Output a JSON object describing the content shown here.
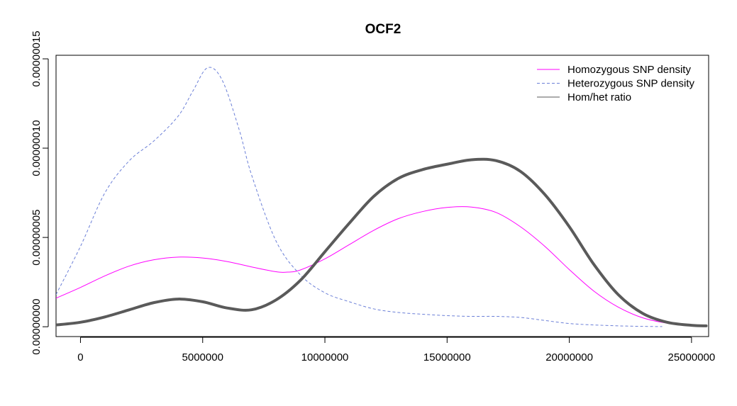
{
  "chart_data": {
    "type": "line",
    "title": "OCF2",
    "xlabel": "",
    "ylabel": "",
    "xlim": [
      -1000000,
      25700000
    ],
    "ylim": [
      -5.5e-09,
      1.52e-07
    ],
    "grid": false,
    "legend_position": "top-right",
    "x_ticks": [
      0,
      5000000,
      10000000,
      15000000,
      20000000,
      25000000
    ],
    "x_tick_labels": [
      "0",
      "5000000",
      "10000000",
      "15000000",
      "20000000",
      "25000000"
    ],
    "y_ticks": [
      0,
      5e-08,
      1e-07,
      1.5e-07
    ],
    "y_tick_labels": [
      "0.00000000",
      "0.00000005",
      "0.00000010",
      "0.00000015"
    ],
    "series": [
      {
        "name": "Homozygous SNP density",
        "color": "#ff00ff",
        "style": "solid",
        "width": 1,
        "x": [
          -1000000,
          0,
          1000000,
          2000000,
          3000000,
          4000000,
          5000000,
          6000000,
          7000000,
          8000000,
          8500000,
          9000000,
          10000000,
          11000000,
          12000000,
          13000000,
          14000000,
          15000000,
          16000000,
          17000000,
          18000000,
          19000000,
          20000000,
          21000000,
          22000000,
          23000000,
          24000000,
          25000000,
          25600000
        ],
        "y": [
          1.6e-08,
          2.2e-08,
          2.85e-08,
          3.4e-08,
          3.75e-08,
          3.9e-08,
          3.85e-08,
          3.65e-08,
          3.35e-08,
          3.08e-08,
          3.06e-08,
          3.18e-08,
          3.8e-08,
          4.6e-08,
          5.4e-08,
          6.05e-08,
          6.45e-08,
          6.68e-08,
          6.7e-08,
          6.4e-08,
          5.6e-08,
          4.5e-08,
          3.2e-08,
          2e-08,
          1.1e-08,
          5e-09,
          2e-09,
          8e-10,
          5e-10
        ]
      },
      {
        "name": "Heterozygous SNP density",
        "color": "#6b7fd7",
        "style": "dashed",
        "width": 1,
        "x": [
          -1000000,
          0,
          1000000,
          2000000,
          3000000,
          4000000,
          4600000,
          5200000,
          5800000,
          6500000,
          7000000,
          8000000,
          9000000,
          10000000,
          11000000,
          12000000,
          13000000,
          14000000,
          15000000,
          16000000,
          17000000,
          18000000,
          19000000,
          20000000,
          21000000,
          22000000,
          23000000,
          23800000
        ],
        "y": [
          1.8e-08,
          4.5e-08,
          7.5e-08,
          9.3e-08,
          1.04e-07,
          1.18e-07,
          1.32e-07,
          1.45e-07,
          1.38e-07,
          1.1e-07,
          8.5e-08,
          4.8e-08,
          2.9e-08,
          1.9e-08,
          1.4e-08,
          1e-08,
          8e-09,
          7e-09,
          6.2e-09,
          5.8e-09,
          5.8e-09,
          5.2e-09,
          3.5e-09,
          1.8e-09,
          1e-09,
          5e-10,
          2e-10,
          1e-10
        ]
      },
      {
        "name": "Hom/het ratio",
        "color": "#5a5a5a",
        "style": "solid",
        "width": 4,
        "x": [
          -1000000,
          0,
          1000000,
          2000000,
          3000000,
          4000000,
          5000000,
          6000000,
          7000000,
          8000000,
          9000000,
          10000000,
          11000000,
          12000000,
          13000000,
          14000000,
          15000000,
          16000000,
          17000000,
          18000000,
          19000000,
          20000000,
          21000000,
          22000000,
          23000000,
          24000000,
          25000000,
          25600000
        ],
        "y": [
          1e-09,
          2.5e-09,
          5.5e-09,
          9.5e-09,
          1.35e-08,
          1.55e-08,
          1.4e-08,
          1.05e-08,
          9.5e-09,
          1.5e-08,
          2.6e-08,
          4.2e-08,
          5.8e-08,
          7.3e-08,
          8.3e-08,
          8.8e-08,
          9.1e-08,
          9.35e-08,
          9.3e-08,
          8.7e-08,
          7.4e-08,
          5.6e-08,
          3.5e-08,
          1.8e-08,
          7.5e-09,
          2.5e-09,
          8e-10,
          5e-10
        ]
      }
    ]
  }
}
